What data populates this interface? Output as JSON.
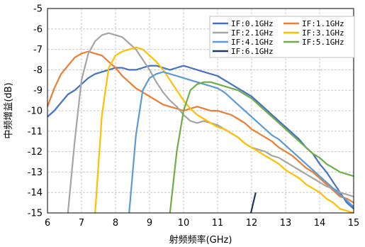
{
  "chart_data": {
    "type": "line",
    "xlabel": "射频频率(GHz)",
    "ylabel": "中频增益(dB)",
    "xlim": [
      6,
      15
    ],
    "ylim": [
      -15,
      -5
    ],
    "xticks": [
      "6",
      "7",
      "8",
      "9",
      "10",
      "11",
      "12",
      "13",
      "14",
      "15"
    ],
    "yticks": [
      "-15",
      "-14",
      "-13",
      "-12",
      "-11",
      "-10",
      "-9",
      "-8",
      "-7",
      "-6",
      "-5"
    ],
    "grid": true,
    "legend": "top-right",
    "series": [
      {
        "name": "IF:0.1GHz",
        "color": "#4472c4",
        "x": [
          6.0,
          6.2,
          6.4,
          6.6,
          6.8,
          7.0,
          7.2,
          7.4,
          7.6,
          7.8,
          8.0,
          8.2,
          8.4,
          8.6,
          8.8,
          9.0,
          9.2,
          9.4,
          9.6,
          9.8,
          10.0,
          10.2,
          10.4,
          10.6,
          10.8,
          11.0,
          11.2,
          11.4,
          11.6,
          11.8,
          12.0,
          12.2,
          12.4,
          12.6,
          12.8,
          13.0,
          13.2,
          13.4,
          13.6,
          13.8,
          14.0,
          14.2,
          14.4,
          14.6,
          14.8,
          15.0
        ],
        "y": [
          -10.3,
          -10.0,
          -9.6,
          -9.2,
          -9.0,
          -8.7,
          -8.4,
          -8.2,
          -8.1,
          -8.0,
          -7.9,
          -7.9,
          -8.0,
          -8.0,
          -7.9,
          -7.8,
          -7.8,
          -7.9,
          -8.0,
          -7.9,
          -7.8,
          -7.9,
          -8.0,
          -8.1,
          -8.2,
          -8.3,
          -8.5,
          -8.7,
          -8.9,
          -9.1,
          -9.3,
          -9.6,
          -9.9,
          -10.2,
          -10.5,
          -10.8,
          -11.1,
          -11.4,
          -11.8,
          -12.1,
          -12.6,
          -13.0,
          -13.5,
          -14.0,
          -14.5,
          -14.8
        ]
      },
      {
        "name": "IF:1.1GHz",
        "color": "#ed7d31",
        "x": [
          6.0,
          6.2,
          6.4,
          6.6,
          6.8,
          7.0,
          7.2,
          7.4,
          7.6,
          7.8,
          8.0,
          8.2,
          8.4,
          8.6,
          8.8,
          9.0,
          9.2,
          9.4,
          9.6,
          9.8,
          10.0,
          10.2,
          10.4,
          10.6,
          10.8,
          11.0,
          11.2,
          11.4,
          11.6,
          11.8,
          12.0,
          12.2,
          12.4,
          12.6,
          12.8,
          13.0,
          13.2,
          13.4,
          13.6,
          13.8,
          14.0,
          14.2,
          14.4,
          14.6,
          14.8,
          15.0
        ],
        "y": [
          -9.8,
          -8.9,
          -8.2,
          -7.8,
          -7.4,
          -7.2,
          -7.1,
          -7.2,
          -7.3,
          -7.6,
          -7.9,
          -8.3,
          -8.6,
          -8.9,
          -9.1,
          -9.3,
          -9.5,
          -9.7,
          -9.8,
          -9.9,
          -10.0,
          -9.9,
          -9.8,
          -9.9,
          -10.0,
          -10.0,
          -10.1,
          -10.2,
          -10.4,
          -10.6,
          -10.9,
          -11.1,
          -11.3,
          -11.5,
          -11.8,
          -12.0,
          -12.2,
          -12.5,
          -12.8,
          -13.0,
          -13.3,
          -13.6,
          -13.9,
          -14.2,
          -14.3,
          -14.5
        ]
      },
      {
        "name": "IF:2.1GHz",
        "color": "#a5a5a5",
        "x": [
          6.6,
          6.8,
          7.0,
          7.2,
          7.4,
          7.6,
          7.8,
          8.0,
          8.2,
          8.4,
          8.6,
          8.8,
          9.0,
          9.2,
          9.4,
          9.6,
          9.8,
          10.0,
          10.2,
          10.4,
          10.6,
          10.8,
          11.0,
          11.2,
          11.4,
          11.6,
          11.8,
          12.0,
          12.2,
          12.4,
          12.6,
          12.8,
          13.0,
          13.2,
          13.4,
          13.6,
          13.8,
          14.0,
          14.2,
          14.4,
          14.6,
          14.8,
          15.0
        ],
        "y": [
          -15.0,
          -11.5,
          -8.5,
          -7.2,
          -6.6,
          -6.3,
          -6.2,
          -6.3,
          -6.4,
          -6.7,
          -7.0,
          -7.5,
          -8.0,
          -8.6,
          -9.1,
          -9.5,
          -9.8,
          -10.2,
          -10.5,
          -10.6,
          -10.5,
          -10.6,
          -10.7,
          -10.9,
          -11.1,
          -11.3,
          -11.6,
          -11.8,
          -11.9,
          -12.0,
          -12.2,
          -12.3,
          -12.5,
          -12.7,
          -12.9,
          -13.1,
          -13.3,
          -13.5,
          -13.7,
          -13.8,
          -14.0,
          -14.1,
          -14.2
        ]
      },
      {
        "name": "IF:3.1GHz",
        "color": "#ffc000",
        "x": [
          7.4,
          7.6,
          7.8,
          8.0,
          8.2,
          8.4,
          8.6,
          8.8,
          9.0,
          9.2,
          9.4,
          9.6,
          9.8,
          10.0,
          10.2,
          10.4,
          10.6,
          10.8,
          11.0,
          11.2,
          11.4,
          11.6,
          11.8,
          12.0,
          12.2,
          12.4,
          12.6,
          12.8,
          13.0,
          13.2,
          13.4,
          13.6,
          13.8,
          14.0,
          14.2,
          14.4,
          14.6,
          14.8,
          15.0
        ],
        "y": [
          -15.0,
          -10.2,
          -7.9,
          -7.3,
          -7.1,
          -7.0,
          -6.9,
          -7.0,
          -7.3,
          -7.6,
          -8.0,
          -8.5,
          -9.0,
          -9.5,
          -9.9,
          -10.2,
          -10.4,
          -10.6,
          -10.8,
          -10.9,
          -11.1,
          -11.3,
          -11.6,
          -11.8,
          -12.0,
          -12.2,
          -12.4,
          -12.6,
          -12.9,
          -13.1,
          -13.3,
          -13.6,
          -13.8,
          -14.0,
          -14.3,
          -14.5,
          -14.8,
          -14.9,
          -15.0
        ]
      },
      {
        "name": "IF:4.1GHz",
        "color": "#5b9bd5",
        "x": [
          8.4,
          8.6,
          8.8,
          9.0,
          9.2,
          9.4,
          9.6,
          9.8,
          10.0,
          10.2,
          10.4,
          10.6,
          10.8,
          11.0,
          11.2,
          11.4,
          11.6,
          11.8,
          12.0,
          12.2,
          12.4,
          12.6,
          12.8,
          13.0,
          13.2,
          13.4,
          13.6,
          13.8,
          14.0,
          14.2,
          14.4,
          14.6,
          14.8,
          15.0
        ],
        "y": [
          -15.0,
          -11.2,
          -9.0,
          -8.4,
          -8.2,
          -8.1,
          -8.2,
          -8.3,
          -8.4,
          -8.5,
          -8.6,
          -8.7,
          -8.8,
          -8.9,
          -9.1,
          -9.4,
          -9.7,
          -10.0,
          -10.3,
          -10.6,
          -10.9,
          -11.2,
          -11.4,
          -11.7,
          -12.0,
          -12.3,
          -12.6,
          -12.9,
          -13.2,
          -13.5,
          -13.8,
          -14.1,
          -14.4,
          -14.7
        ]
      },
      {
        "name": "IF:5.1GHz",
        "color": "#70ad47",
        "x": [
          9.6,
          9.8,
          10.0,
          10.2,
          10.4,
          10.6,
          10.8,
          11.0,
          11.2,
          11.4,
          11.6,
          11.8,
          12.0,
          12.2,
          12.4,
          12.6,
          12.8,
          13.0,
          13.2,
          13.4,
          13.6,
          13.8,
          14.0,
          14.2,
          14.4,
          14.6,
          14.8,
          15.0
        ],
        "y": [
          -15.0,
          -12.0,
          -10.0,
          -9.0,
          -8.7,
          -8.6,
          -8.6,
          -8.7,
          -8.8,
          -8.9,
          -9.0,
          -9.2,
          -9.4,
          -9.7,
          -10.0,
          -10.3,
          -10.6,
          -10.9,
          -11.2,
          -11.5,
          -11.8,
          -12.1,
          -12.3,
          -12.6,
          -12.8,
          -13.0,
          -13.1,
          -13.2
        ]
      },
      {
        "name": "IF:6.1GHz",
        "color": "#203864",
        "x": [
          11.98,
          12.05,
          12.12
        ],
        "y": [
          -15.0,
          -14.5,
          -14.0
        ]
      }
    ]
  }
}
